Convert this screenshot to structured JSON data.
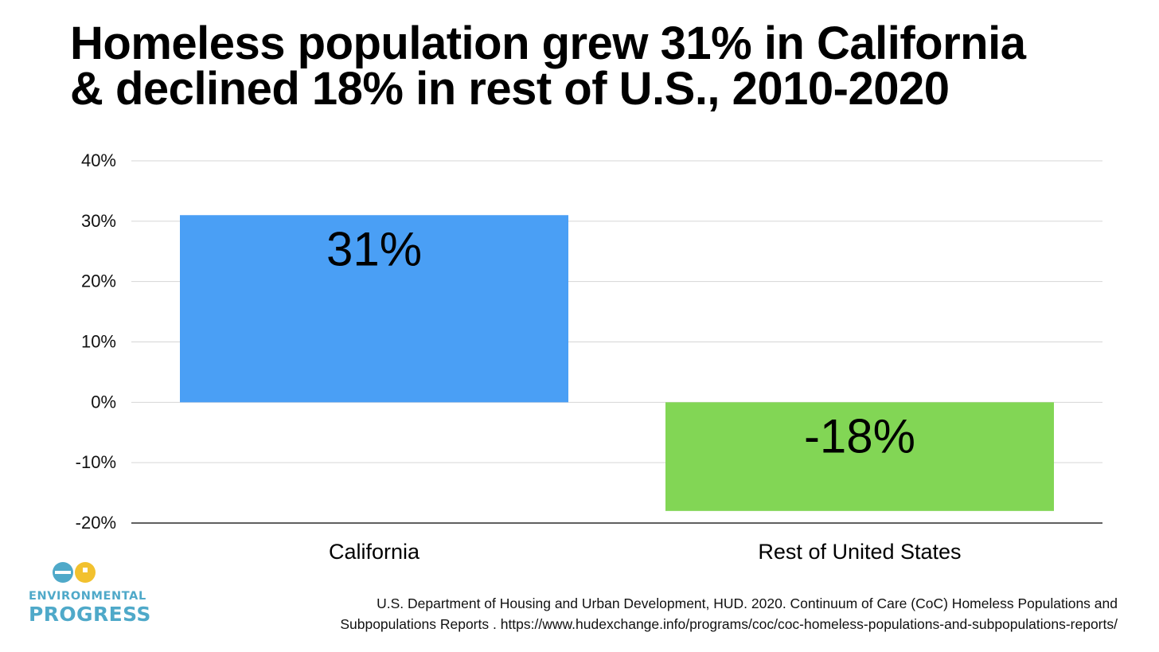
{
  "title": {
    "line1": "Homeless population grew 31% in California",
    "line2": "& declined 18% in rest of U.S., 2010-2020"
  },
  "chart_data": {
    "type": "bar",
    "categories": [
      "California",
      "Rest of United States"
    ],
    "values": [
      31,
      -18
    ],
    "data_labels": [
      "31%",
      "-18%"
    ],
    "ylim": [
      -20,
      40
    ],
    "yticks": [
      40,
      30,
      20,
      10,
      0,
      -10,
      -20
    ],
    "ytick_labels": [
      "40%",
      "30%",
      "20%",
      "10%",
      "0%",
      "-10%",
      "-20%"
    ],
    "grid": true,
    "colors": [
      "#4a9ff5",
      "#82d655"
    ],
    "xlabel": "",
    "ylabel": ""
  },
  "logo": {
    "line1": "ENVIRONMENTAL",
    "line2": "PROGRESS",
    "colors": {
      "blue": "#4fa9c9",
      "yellow": "#f2c12e"
    }
  },
  "source": {
    "line1": "U.S. Department of Housing and Urban Development, HUD. 2020. Continuum of Care (CoC) Homeless Populations and",
    "line2": "Subpopulations Reports . https://www.hudexchange.info/programs/coc/coc-homeless-populations-and-subpopulations-reports/"
  }
}
